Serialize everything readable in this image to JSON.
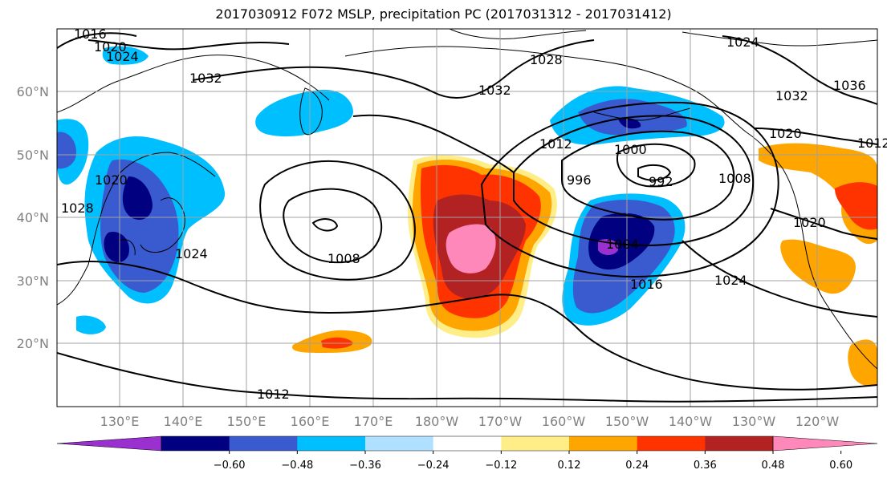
{
  "title": "2017030912 F072 MSLP, precipitation PC (2017031312 - 2017031412)",
  "lat_labels": [
    "60°N",
    "50°N",
    "40°N",
    "30°N",
    "20°N"
  ],
  "lon_labels": [
    "130°E",
    "140°E",
    "150°E",
    "160°E",
    "170°E",
    "180°W",
    "170°W",
    "160°W",
    "150°W",
    "140°W",
    "130°W",
    "120°W"
  ],
  "colorbar": {
    "colors": [
      "#9b30d0",
      "#000080",
      "#3a5bd0",
      "#00bfff",
      "#b0e0ff",
      "#ffffff",
      "#ffee88",
      "#ffa500",
      "#ff3300",
      "#b22222",
      "#ff88bb"
    ],
    "tick_labels": [
      "−0.60",
      "−0.48",
      "−0.36",
      "−0.24",
      "−0.12",
      "0.12",
      "0.24",
      "0.36",
      "0.48",
      "0.60"
    ]
  },
  "isobar_labels": [
    "1016",
    "1020",
    "1024",
    "1032",
    "1032",
    "1028",
    "1024",
    "1032",
    "1036",
    "1012",
    "1000",
    "996",
    "992",
    "1008",
    "1020",
    "1020",
    "1020",
    "1004",
    "1016",
    "1024",
    "1024",
    "1008",
    "1012",
    "1028",
    "1012"
  ]
}
